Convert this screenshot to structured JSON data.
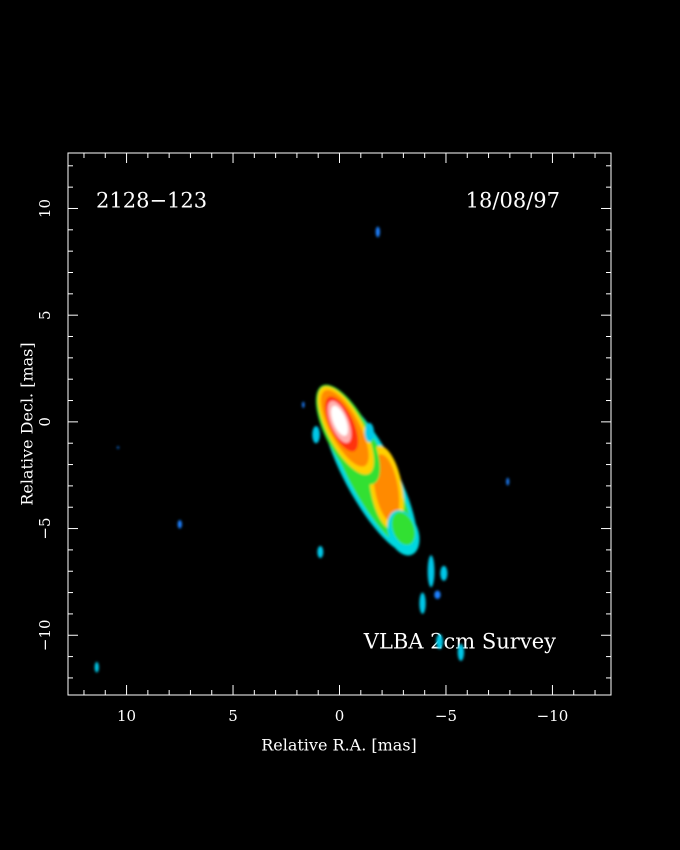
{
  "chart_data": {
    "type": "image",
    "source": "2128−123",
    "date": "18/08/97",
    "survey": "VLBA 2cm Survey",
    "x_label": "Relative R.A. [mas]",
    "y_label": "Relative Decl. [mas]",
    "background": "#000000",
    "axis_color": "#ffffff",
    "xlim": [
      12.75,
      -12.75
    ],
    "ylim": [
      -12.8,
      12.6
    ],
    "xticks": [
      10,
      5,
      0,
      {
        "value": -5,
        "label": "−5"
      },
      {
        "value": -10,
        "label": "−10"
      }
    ],
    "yticks": [
      10,
      5,
      0,
      {
        "value": -5,
        "label": "−5"
      },
      {
        "value": -10,
        "label": "−10"
      }
    ],
    "xminorticks": [
      12,
      11,
      9,
      8,
      7,
      6,
      4,
      3,
      2,
      1,
      -1,
      -2,
      -3,
      -4,
      -6,
      -7,
      -8,
      -9,
      -11,
      -12
    ],
    "yminorticks": [
      12,
      11,
      9,
      8,
      7,
      6,
      4,
      3,
      2,
      1,
      -1,
      -2,
      -3,
      -4,
      -6,
      -7,
      -8,
      -9,
      -11,
      -12
    ],
    "components": [
      {
        "x": -1.4,
        "y": -2.4,
        "rx": 1.2,
        "ry": 4.2,
        "angle": -28,
        "color": "#00d8e0"
      },
      {
        "x": -1.4,
        "y": -2.4,
        "rx": 1.0,
        "ry": 3.9,
        "angle": -28,
        "color": "#30e030"
      },
      {
        "x": -2.2,
        "y": -3.1,
        "rx": 0.75,
        "ry": 2.0,
        "angle": -10,
        "color": "#ffd000"
      },
      {
        "x": -2.2,
        "y": -3.1,
        "rx": 0.55,
        "ry": 1.6,
        "angle": -10,
        "color": "#ff8a00"
      },
      {
        "x": -3.0,
        "y": -5.2,
        "rx": 0.7,
        "ry": 1.1,
        "angle": -20,
        "color": "#00d8e0"
      },
      {
        "x": -3.0,
        "y": -5.0,
        "rx": 0.5,
        "ry": 0.8,
        "angle": -20,
        "color": "#30e030"
      },
      {
        "x": -0.4,
        "y": -0.6,
        "rx": 1.0,
        "ry": 2.6,
        "angle": -28,
        "color": "#30e030"
      },
      {
        "x": -0.3,
        "y": -0.4,
        "rx": 0.85,
        "ry": 2.3,
        "angle": -28,
        "color": "#ffd000"
      },
      {
        "x": -0.25,
        "y": -0.3,
        "rx": 0.7,
        "ry": 2.0,
        "angle": -28,
        "color": "#ff8a00"
      },
      {
        "x": -0.1,
        "y": -0.1,
        "rx": 0.55,
        "ry": 1.4,
        "angle": -25,
        "color": "#ff3010"
      },
      {
        "x": 0,
        "y": 0,
        "rx": 0.42,
        "ry": 1.05,
        "angle": -22,
        "color": "#ffb0b0"
      },
      {
        "x": 0,
        "y": 0.05,
        "rx": 0.3,
        "ry": 0.75,
        "angle": -22,
        "color": "#ffffff"
      },
      {
        "x": 1.1,
        "y": -0.6,
        "rx": 0.18,
        "ry": 0.4,
        "angle": 0,
        "color": "#00c8e8"
      },
      {
        "x": -1.4,
        "y": -0.5,
        "rx": 0.22,
        "ry": 0.45,
        "angle": 0,
        "color": "#00c8e8"
      },
      {
        "x": -1.8,
        "y": 8.9,
        "rx": 0.1,
        "ry": 0.25,
        "angle": 0,
        "color": "#1a80ff"
      },
      {
        "x": 1.7,
        "y": 0.8,
        "rx": 0.06,
        "ry": 0.15,
        "angle": 0,
        "color": "#1a80ff"
      },
      {
        "x": 10.4,
        "y": -1.2,
        "rx": 0.05,
        "ry": 0.06,
        "angle": 0,
        "color": "#1a80ff"
      },
      {
        "x": 7.5,
        "y": -4.8,
        "rx": 0.1,
        "ry": 0.2,
        "angle": 0,
        "color": "#1a80ff"
      },
      {
        "x": -7.9,
        "y": -2.8,
        "rx": 0.07,
        "ry": 0.18,
        "angle": 0,
        "color": "#1a80ff"
      },
      {
        "x": 0.9,
        "y": -6.1,
        "rx": 0.14,
        "ry": 0.28,
        "angle": 0,
        "color": "#00c8e8"
      },
      {
        "x": -4.3,
        "y": -7.0,
        "rx": 0.16,
        "ry": 0.75,
        "angle": 0,
        "color": "#00c8e8"
      },
      {
        "x": -4.9,
        "y": -7.1,
        "rx": 0.17,
        "ry": 0.35,
        "angle": 0,
        "color": "#00c8e8"
      },
      {
        "x": -3.9,
        "y": -8.5,
        "rx": 0.15,
        "ry": 0.5,
        "angle": 0,
        "color": "#00c8e8"
      },
      {
        "x": -4.6,
        "y": -8.1,
        "rx": 0.15,
        "ry": 0.2,
        "angle": 0,
        "color": "#1a80ff"
      },
      {
        "x": -4.7,
        "y": -10.3,
        "rx": 0.16,
        "ry": 0.35,
        "angle": 0,
        "color": "#00c8e8"
      },
      {
        "x": -5.7,
        "y": -10.8,
        "rx": 0.15,
        "ry": 0.4,
        "angle": 0,
        "color": "#00c8e8"
      },
      {
        "x": 11.4,
        "y": -11.5,
        "rx": 0.1,
        "ry": 0.25,
        "angle": 0,
        "color": "#00c8e8"
      }
    ]
  }
}
